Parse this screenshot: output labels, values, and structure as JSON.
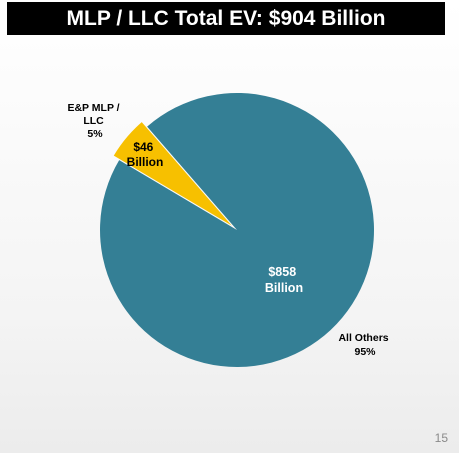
{
  "slide": {
    "title": "MLP / LLC Total EV: $904 Billion",
    "page_number": "15"
  },
  "colors": {
    "title_bar": "#000000",
    "title_text": "#ffffff",
    "all_others": "#347f95",
    "ep_mlp": "#f7c000"
  },
  "chart_data": {
    "type": "pie",
    "title": "MLP / LLC Total EV: $904 Billion",
    "unit": "$ Billion",
    "slices": [
      {
        "name_lines": [
          "E&P MLP /",
          "LLC"
        ],
        "value": 46,
        "value_lines": [
          "$46",
          "Billion"
        ],
        "percent_label": "5%",
        "color": "#f7c000"
      },
      {
        "name_lines": [
          "All Others"
        ],
        "value": 858,
        "value_lines": [
          "$858",
          "Billion"
        ],
        "percent_label": "95%",
        "color": "#347f95"
      }
    ]
  }
}
